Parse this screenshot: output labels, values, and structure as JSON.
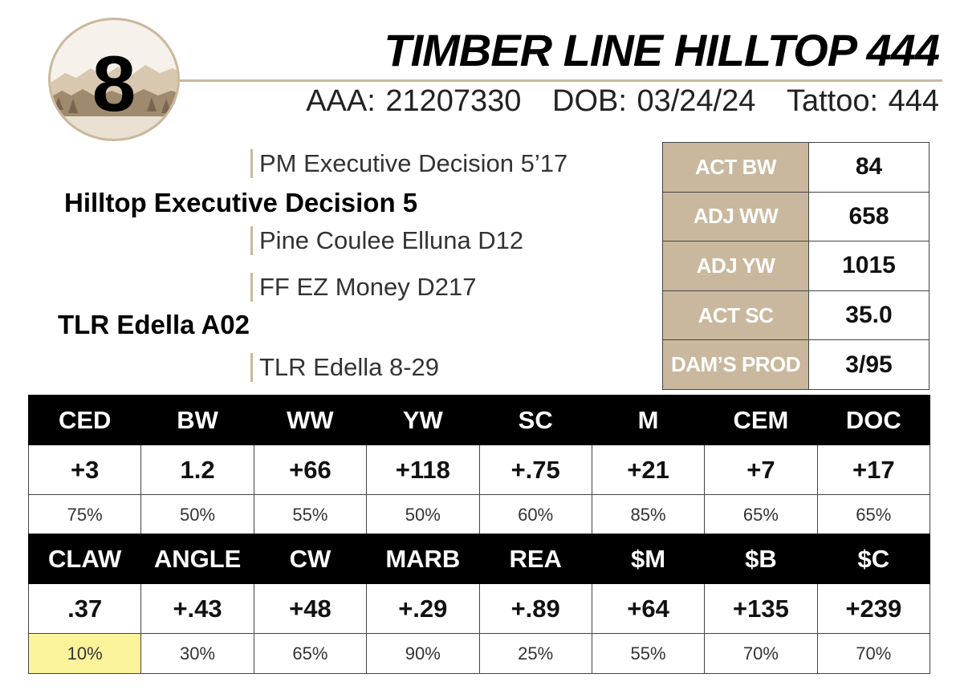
{
  "lot": {
    "number": "8"
  },
  "animal": {
    "name": "TIMBER LINE HILLTOP 444",
    "registration": "AAA: 21207330",
    "dob": "DOB: 03/24/24",
    "tattoo": "Tattoo: 444"
  },
  "pedigree": {
    "sire_sire": "PM Executive Decision 5’17",
    "sire": "Hilltop Executive Decision 5",
    "sire_dam": "Pine Coulee Elluna D12",
    "dam_sire": "FF EZ Money D217",
    "dam": "TLR Edella A02",
    "dam_dam": "TLR Edella 8-29"
  },
  "stats": [
    {
      "label": "ACT BW",
      "value": "84"
    },
    {
      "label": "ADJ WW",
      "value": "658"
    },
    {
      "label": "ADJ YW",
      "value": "1015"
    },
    {
      "label": "ACT SC",
      "value": "35.0"
    },
    {
      "label": "DAM’S PROD",
      "value": "3/95"
    }
  ],
  "epd_row1": {
    "headers": [
      "CED",
      "BW",
      "WW",
      "YW",
      "SC",
      "M",
      "CEM",
      "DOC"
    ],
    "values": [
      "+3",
      "1.2",
      "+66",
      "+118",
      "+.75",
      "+21",
      "+7",
      "+17"
    ],
    "percentiles": [
      "75%",
      "50%",
      "55%",
      "50%",
      "60%",
      "85%",
      "65%",
      "65%"
    ]
  },
  "epd_row2": {
    "headers": [
      "CLAW",
      "ANGLE",
      "CW",
      "MARB",
      "REA",
      "$M",
      "$B",
      "$C"
    ],
    "values": [
      ".37",
      "+.43",
      "+48",
      "+.29",
      "+.89",
      "+64",
      "+135",
      "+239"
    ],
    "percentiles": [
      "10%",
      "30%",
      "65%",
      "90%",
      "25%",
      "55%",
      "70%",
      "70%"
    ]
  },
  "colors": {
    "accent": "#c9b89d",
    "header_bg": "#000000",
    "highlight": "#fbf39a"
  }
}
